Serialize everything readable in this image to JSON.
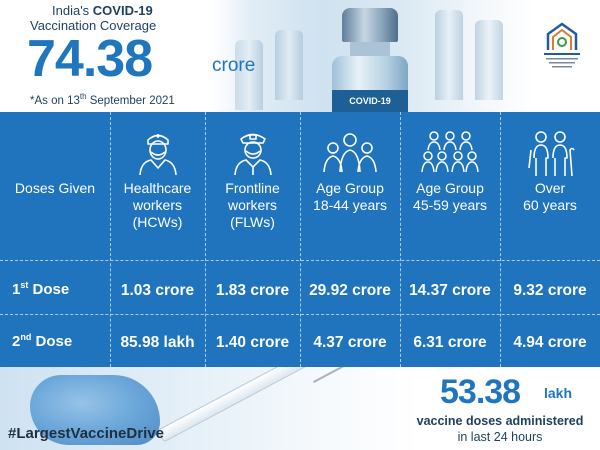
{
  "header": {
    "title_prefix": "India's ",
    "title_bold": "COVID-19",
    "subtitle": "Vaccination Coverage",
    "total_value": "74.38",
    "total_unit": "crore",
    "as_on_prefix": "*As on 13",
    "as_on_sup": "th",
    "as_on_suffix": " September 2021",
    "vial_label": "COVID-19"
  },
  "table": {
    "doses_header": "Doses Given",
    "columns": [
      {
        "label": "Healthcare workers (HCWs)",
        "icon": "healthcare-worker-icon"
      },
      {
        "label": "Frontline workers (FLWs)",
        "icon": "frontline-worker-icon"
      },
      {
        "label": "Age Group 18-44 years",
        "icon": "group-18-44-icon"
      },
      {
        "label": "Age Group 45-59 years",
        "icon": "group-45-59-icon"
      },
      {
        "label": "Over 60 years",
        "icon": "elderly-icon"
      }
    ],
    "header_lines": [
      [
        "Healthcare",
        "workers",
        "(HCWs)"
      ],
      [
        "Frontline",
        "workers",
        "(FLWs)"
      ],
      [
        "Age Group",
        "18-44 years"
      ],
      [
        "Age Group",
        "45-59 years"
      ],
      [
        "Over",
        "60 years"
      ]
    ],
    "rows": [
      {
        "label_main": "1",
        "label_sup": "st",
        "label_rest": " Dose",
        "values": [
          "1.03 crore",
          "1.83 crore",
          "29.92 crore",
          "14.37 crore",
          "9.32 crore"
        ]
      },
      {
        "label_main": "2",
        "label_sup": "nd",
        "label_rest": " Dose",
        "values": [
          "85.98 lakh",
          "1.40 crore",
          "4.37 crore",
          "6.31 crore",
          "4.94 crore"
        ]
      }
    ]
  },
  "footer": {
    "hashtag": "#LargestVaccineDrive",
    "stat_value": "53.38",
    "stat_unit": "lakh",
    "stat_line1": "vaccine doses administered",
    "stat_line2": "in last 24 hours"
  },
  "colors": {
    "primary_blue": "#1f74bd",
    "dark_text": "#1d3f5e"
  }
}
